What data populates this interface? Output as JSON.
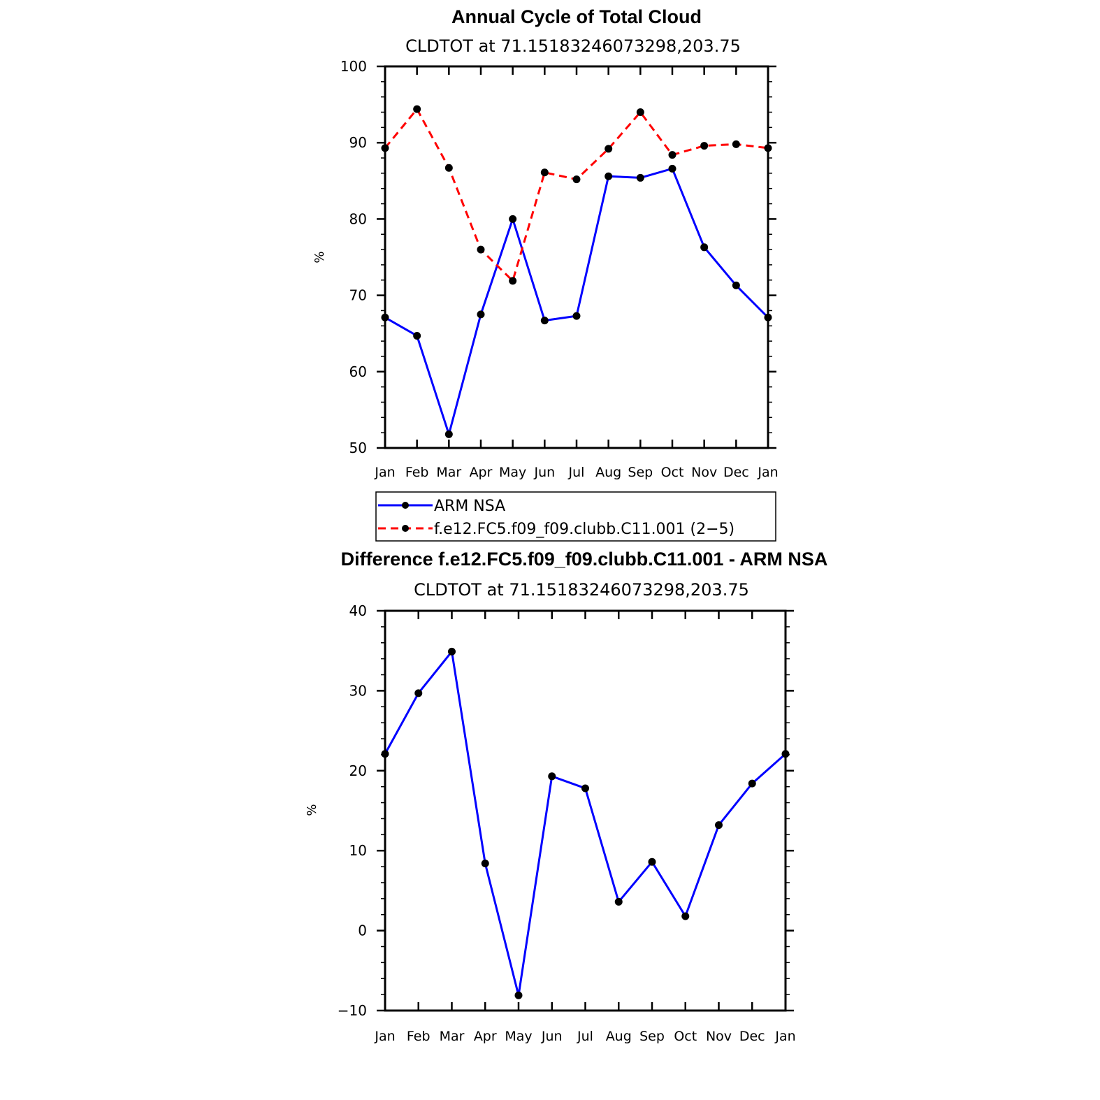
{
  "chart_data": [
    {
      "type": "line",
      "title": "Annual Cycle of Total Cloud",
      "subtitle": "CLDTOT at 71.15183246073298,203.75",
      "xlabel": "",
      "ylabel": "%",
      "categories": [
        "Jan",
        "Feb",
        "Mar",
        "Apr",
        "May",
        "Jun",
        "Jul",
        "Aug",
        "Sep",
        "Oct",
        "Nov",
        "Dec",
        "Jan"
      ],
      "ylim": [
        50,
        100
      ],
      "yticks": [
        50,
        60,
        70,
        80,
        90,
        100
      ],
      "ytick_labels": [
        "50",
        "60",
        "70",
        "80",
        "90",
        "100"
      ],
      "series": [
        {
          "name": "ARM NSA",
          "color": "#0000ff",
          "dash": "solid",
          "values": [
            67.1,
            64.7,
            51.8,
            67.5,
            80.0,
            66.7,
            67.3,
            85.6,
            85.4,
            86.6,
            76.3,
            71.3,
            67.1
          ]
        },
        {
          "name": "f.e12.FC5.f09_f09.clubb.C11.001 (2-5)",
          "color": "#ff0000",
          "dash": "dashed",
          "values": [
            89.3,
            94.4,
            86.7,
            76.0,
            71.9,
            86.1,
            85.2,
            89.2,
            94.0,
            88.4,
            89.6,
            89.8,
            89.3
          ]
        }
      ],
      "legend": {
        "entries": [
          "ARM NSA",
          "f.e12.FC5.f09_f09.clubb.C11.001 (2−5)"
        ],
        "position": "bottom"
      }
    },
    {
      "type": "line",
      "title": "Difference f.e12.FC5.f09_f09.clubb.C11.001 - ARM NSA",
      "subtitle": "CLDTOT at 71.15183246073298,203.75",
      "xlabel": "",
      "ylabel": "%",
      "categories": [
        "Jan",
        "Feb",
        "Mar",
        "Apr",
        "May",
        "Jun",
        "Jul",
        "Aug",
        "Sep",
        "Oct",
        "Nov",
        "Dec",
        "Jan"
      ],
      "ylim": [
        -10,
        40
      ],
      "yticks": [
        -10,
        0,
        10,
        20,
        30,
        40
      ],
      "ytick_labels": [
        "−10",
        "0",
        "10",
        "20",
        "30",
        "40"
      ],
      "series": [
        {
          "name": "Difference",
          "color": "#0000ff",
          "dash": "solid",
          "values": [
            22.1,
            29.7,
            34.9,
            8.4,
            -8.1,
            19.3,
            17.8,
            3.6,
            8.6,
            1.8,
            13.2,
            18.4,
            22.1
          ]
        }
      ]
    }
  ]
}
